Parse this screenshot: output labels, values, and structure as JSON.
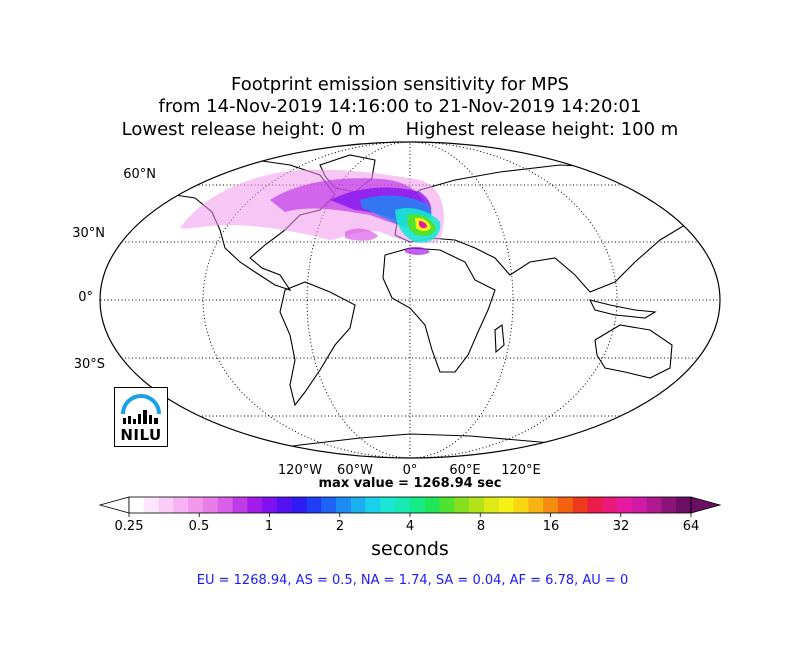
{
  "title": {
    "line1": "Footprint emission sensitivity for MPS",
    "line2": "from 14-Nov-2019 14:16:00 to 21-Nov-2019 14:20:01",
    "line3": "Lowest release height: 0 m       Highest release height: 100 m"
  },
  "map": {
    "lat_labels": [
      "60°N",
      "30°N",
      "0°",
      "30°S"
    ],
    "lon_labels": [
      "120°W",
      "60°W",
      "0°",
      "60°E",
      "120°E"
    ],
    "max_value_label": "max value = 1268.94 sec",
    "logo_text": "NILU"
  },
  "colorbar": {
    "ticks": [
      "0.25",
      "0.5",
      "1",
      "2",
      "4",
      "8",
      "16",
      "32",
      "64"
    ],
    "label": "seconds",
    "colors": [
      "#ffffff",
      "#fde6fb",
      "#f9cdf6",
      "#f5b3f1",
      "#f198ec",
      "#e97de8",
      "#d95ee8",
      "#c03ce8",
      "#a41ceb",
      "#7f10f0",
      "#5412f2",
      "#2f1cf5",
      "#1f3cf6",
      "#1d63f5",
      "#1c8bf3",
      "#1bb0f0",
      "#1bd0ea",
      "#19e7d4",
      "#17eab0",
      "#15ea84",
      "#1de756",
      "#4fe22e",
      "#86e01f",
      "#b5e219",
      "#ddea16",
      "#f6f114",
      "#f8d612",
      "#f6b311",
      "#f48c10",
      "#f2620f",
      "#ee3a1c",
      "#ec1c48",
      "#ea1a78",
      "#e61aa0",
      "#d01aa8",
      "#b0198f",
      "#8a1478",
      "#6a0f63"
    ]
  },
  "stats": {
    "text": "EU = 1268.94,  AS = 0.5,  NA = 1.74,  SA = 0.04,  AF = 6.78,  AU = 0"
  }
}
